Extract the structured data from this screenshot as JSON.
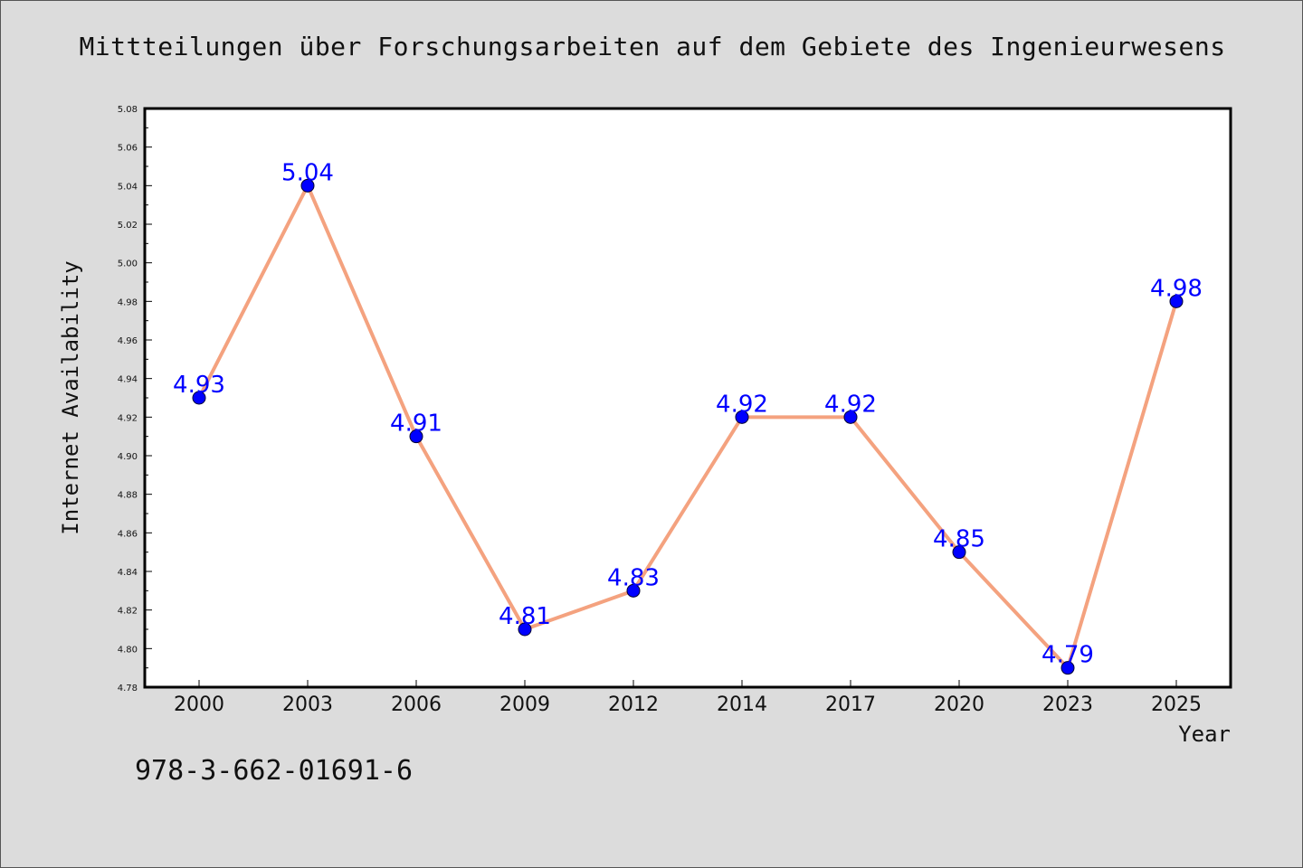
{
  "title": "Mittteilungen über Forschungsarbeiten auf dem Gebiete des Ingenieurwesens",
  "isbn": "978-3-662-01691-6",
  "colors": {
    "background": "#dcdcdc",
    "plot_background": "#ffffff",
    "line": "#f4a27f",
    "marker": "#0000ff",
    "data_label": "#0000ff"
  },
  "chart_data": {
    "type": "line",
    "title": "Mittteilungen über Forschungsarbeiten auf dem Gebiete des Ingenieurwesens",
    "xlabel": "Year",
    "ylabel": "Internet Availability",
    "categories": [
      "2000",
      "2003",
      "2006",
      "2009",
      "2012",
      "2014",
      "2017",
      "2020",
      "2023",
      "2025"
    ],
    "series": [
      {
        "values": [
          4.93,
          5.04,
          4.91,
          4.81,
          4.83,
          4.92,
          4.92,
          4.85,
          4.79,
          4.98
        ],
        "data_labels": [
          "4.93",
          "5.04",
          "4.91",
          "4.81",
          "4.83",
          "4.92",
          "4.92",
          "4.85",
          "4.79",
          "4.98"
        ]
      }
    ],
    "ylim": [
      4.78,
      5.08
    ],
    "yticks": [
      "4.78",
      "4.80",
      "4.82",
      "4.84",
      "4.86",
      "4.88",
      "4.90",
      "4.92",
      "4.94",
      "4.96",
      "4.98",
      "5.00",
      "5.02",
      "5.04",
      "5.06",
      "5.08"
    ],
    "grid": false,
    "legend": "none"
  }
}
